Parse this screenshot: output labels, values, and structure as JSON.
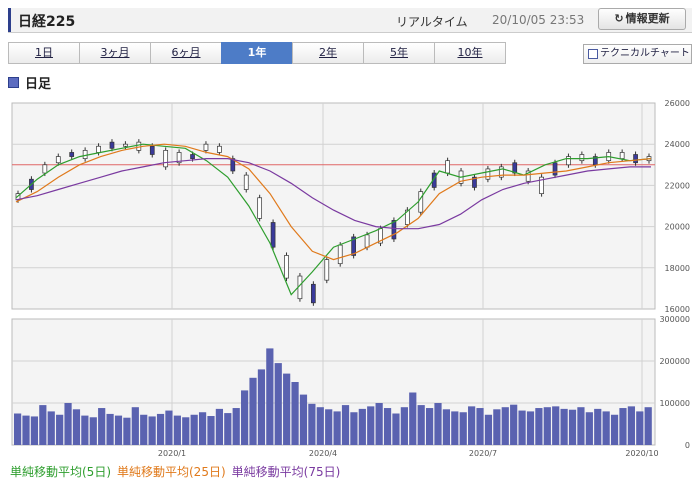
{
  "header": {
    "title": "日経225",
    "realtime": "リアルタイム",
    "timestamp": "20/10/05 23:53",
    "refresh_label": "情報更新"
  },
  "tabs": [
    {
      "label": "1日",
      "active": false
    },
    {
      "label": "3ヶ月",
      "active": false
    },
    {
      "label": "6ヶ月",
      "active": false
    },
    {
      "label": "1年",
      "active": true
    },
    {
      "label": "2年",
      "active": false
    },
    {
      "label": "5年",
      "active": false
    },
    {
      "label": "10年",
      "active": false
    }
  ],
  "technical_label": "テクニカルチャート",
  "section_title": "日足",
  "legend": [
    {
      "label": "単純移動平均(5日)",
      "color": "#2e9e2e"
    },
    {
      "label": "単純移動平均(25日)",
      "color": "#e07a1c"
    },
    {
      "label": "単純移動平均(75日)",
      "color": "#7a3aa0"
    }
  ],
  "chart_data": [
    {
      "type": "line",
      "name": "price",
      "y_ticks": [
        "26000",
        "24000",
        "22000",
        "20000",
        "18000",
        "16000"
      ],
      "ylim": [
        16000,
        26000
      ],
      "x_ticks": [
        "2020/1",
        "2020/4",
        "2020/7",
        "2020/10"
      ],
      "reference_line": 23000,
      "grid": true,
      "series": [
        {
          "name": "単純移動平均(5日)",
          "color": "#2e9e2e",
          "values": [
            21400,
            22300,
            23000,
            23400,
            23600,
            23800,
            24000,
            23900,
            23800,
            23200,
            22400,
            21000,
            19200,
            16700,
            17800,
            19000,
            19400,
            19800,
            20300,
            21200,
            22700,
            22400,
            22600,
            22800,
            22500,
            23000,
            23300,
            23300,
            23400,
            23200,
            23300
          ]
        },
        {
          "name": "単純移動平均(25日)",
          "color": "#e07a1c",
          "values": [
            21200,
            21700,
            22400,
            23000,
            23400,
            23700,
            23900,
            24000,
            23900,
            23600,
            23400,
            22800,
            21600,
            20000,
            18800,
            18400,
            18700,
            19200,
            19700,
            20400,
            21600,
            22200,
            22400,
            22500,
            22500,
            22600,
            22700,
            22900,
            23100,
            23200,
            23300
          ]
        },
        {
          "name": "単純移動平均(75日)",
          "color": "#7a3aa0",
          "values": [
            21300,
            21500,
            21800,
            22100,
            22400,
            22700,
            22900,
            23100,
            23200,
            23300,
            23300,
            23100,
            22700,
            22100,
            21400,
            20800,
            20300,
            20000,
            19900,
            19900,
            20100,
            20600,
            21300,
            21800,
            22100,
            22300,
            22500,
            22700,
            22800,
            22900,
            22900
          ]
        }
      ],
      "candles": [
        [
          21300,
          21600
        ],
        [
          21800,
          22300
        ],
        [
          22600,
          23000
        ],
        [
          23100,
          23400
        ],
        [
          23400,
          23600
        ],
        [
          23300,
          23700
        ],
        [
          23600,
          23900
        ],
        [
          23800,
          24100
        ],
        [
          23900,
          24000
        ],
        [
          23700,
          24100
        ],
        [
          23500,
          23900
        ],
        [
          22900,
          23700
        ],
        [
          23100,
          23600
        ],
        [
          23300,
          23500
        ],
        [
          23700,
          24000
        ],
        [
          23600,
          23900
        ],
        [
          22700,
          23300
        ],
        [
          21800,
          22500
        ],
        [
          20400,
          21400
        ],
        [
          19000,
          20200
        ],
        [
          17500,
          18600
        ],
        [
          16500,
          17600
        ],
        [
          16300,
          17200
        ],
        [
          17400,
          18400
        ],
        [
          18200,
          19100
        ],
        [
          18600,
          19500
        ],
        [
          19000,
          19600
        ],
        [
          19200,
          19900
        ],
        [
          19400,
          20300
        ],
        [
          20100,
          20800
        ],
        [
          20700,
          21700
        ],
        [
          21900,
          22600
        ],
        [
          22600,
          23200
        ],
        [
          22100,
          22700
        ],
        [
          21900,
          22400
        ],
        [
          22300,
          22800
        ],
        [
          22400,
          22900
        ],
        [
          22600,
          23100
        ],
        [
          22200,
          22700
        ],
        [
          21600,
          22400
        ],
        [
          22500,
          23100
        ],
        [
          23000,
          23400
        ],
        [
          23200,
          23500
        ],
        [
          23000,
          23400
        ],
        [
          23200,
          23600
        ],
        [
          23300,
          23600
        ],
        [
          23100,
          23500
        ],
        [
          23200,
          23400
        ]
      ]
    },
    {
      "type": "bar",
      "name": "volume",
      "y_ticks": [
        "300000",
        "200000",
        "100000",
        "0"
      ],
      "ylim": [
        0,
        300000
      ],
      "values": [
        75000,
        70000,
        68000,
        95000,
        80000,
        72000,
        100000,
        85000,
        70000,
        66000,
        88000,
        74000,
        70000,
        65000,
        90000,
        72000,
        68000,
        74000,
        82000,
        70000,
        66000,
        72000,
        78000,
        69000,
        86000,
        76000,
        88000,
        130000,
        160000,
        180000,
        230000,
        195000,
        170000,
        150000,
        120000,
        98000,
        90000,
        85000,
        80000,
        95000,
        78000,
        86000,
        92000,
        100000,
        88000,
        75000,
        90000,
        125000,
        95000,
        88000,
        100000,
        85000,
        80000,
        78000,
        92000,
        88000,
        72000,
        85000,
        90000,
        96000,
        82000,
        80000,
        88000,
        90000,
        92000,
        86000,
        84000,
        90000,
        78000,
        86000,
        80000,
        72000,
        88000,
        92000,
        80000,
        90000
      ]
    }
  ]
}
